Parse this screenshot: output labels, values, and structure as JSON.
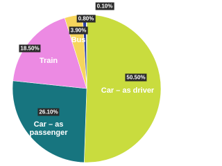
{
  "chart_data": {
    "type": "pie",
    "categories": [
      "Car – as driver",
      "Car – as passenger",
      "Train",
      "Bus",
      null,
      null
    ],
    "values": [
      50.5,
      26.1,
      18.5,
      3.9,
      0.8,
      0.1
    ],
    "value_labels": [
      "50.50%",
      "26.10%",
      "18.50%",
      "3.90%",
      "0.80%",
      "0.10%"
    ],
    "colors": [
      "#c9dc3e",
      "#17757f",
      "#ec8ae3",
      "#f6d55c",
      "#2b3f9e",
      "#c0392b"
    ]
  }
}
